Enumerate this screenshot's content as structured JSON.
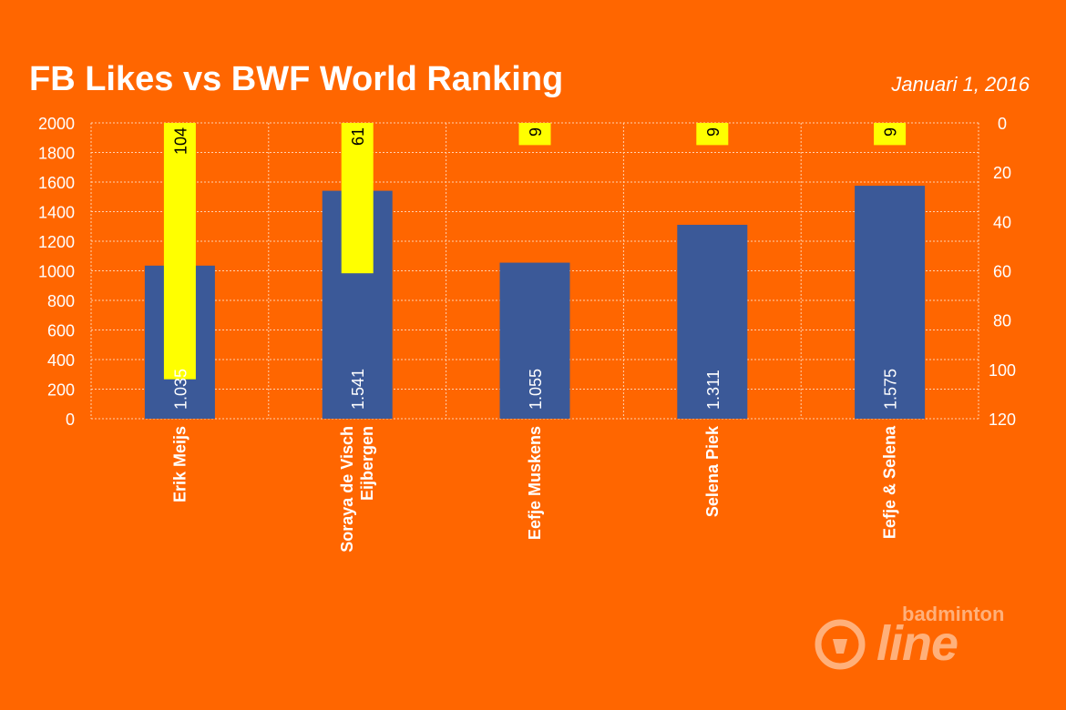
{
  "header": {
    "title": "FB Likes vs BWF World Ranking",
    "date": "Januari 1, 2016"
  },
  "logo": {
    "small_text": "badminton",
    "big_text": "line",
    "icon": "shuttlecock-circle-icon"
  },
  "colors": {
    "background": "#ff6600",
    "likes_bar": "#3b5998",
    "rank_bar": "#ffff00",
    "grid": "#ffd2b0",
    "text": "#ffffff"
  },
  "chart_data": {
    "type": "bar",
    "title": "FB Likes vs BWF World Ranking",
    "categories": [
      [
        "Erik Meijs"
      ],
      [
        "Soraya de Visch",
        "Eijbergen"
      ],
      [
        "Eefje Muskens"
      ],
      [
        "Selena Piek"
      ],
      [
        "Eefje & Selena"
      ]
    ],
    "series": [
      {
        "axis": "left",
        "values": [
          1035,
          1541,
          1055,
          1311,
          1575
        ],
        "labels": [
          "1.035",
          "1.541",
          "1.055",
          "1.311",
          "1.575"
        ]
      },
      {
        "axis": "right",
        "values": [
          104,
          61,
          9,
          9,
          9
        ],
        "labels": [
          "104",
          "61",
          "9",
          "9",
          "9"
        ]
      }
    ],
    "left_axis": {
      "min": 0,
      "max": 2000,
      "ticks": [
        0,
        200,
        400,
        600,
        800,
        1000,
        1200,
        1400,
        1600,
        1800,
        2000
      ]
    },
    "right_axis": {
      "min": 0,
      "max": 120,
      "reversed": true,
      "ticks": [
        0,
        20,
        40,
        60,
        80,
        100,
        120
      ]
    },
    "grid": true,
    "legend": "none"
  }
}
